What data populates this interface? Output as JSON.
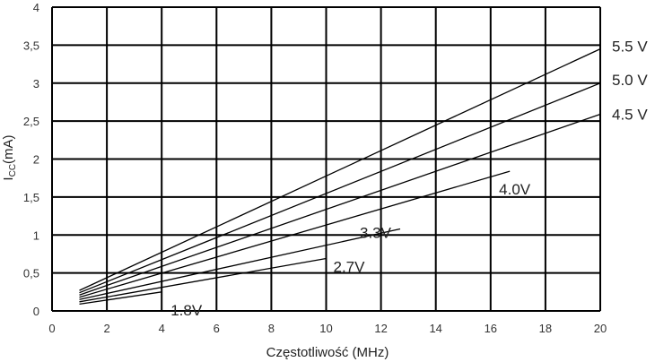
{
  "chart_data": {
    "type": "line",
    "xlabel": "Częstotliwość (MHz)",
    "ylabel_main": "I",
    "ylabel_sub": "CC",
    "ylabel_rest": "(mA)",
    "x_ticks": [
      "0",
      "2",
      "4",
      "6",
      "8",
      "10",
      "12",
      "14",
      "16",
      "18",
      "20"
    ],
    "y_ticks": [
      "0",
      "0,5",
      "1",
      "1,5",
      "2",
      "2,5",
      "3",
      "3,5",
      "4"
    ],
    "xlim": [
      0,
      20
    ],
    "ylim": [
      0,
      4
    ],
    "grid": true,
    "series": [
      {
        "name": "1.8V",
        "x": [
          1,
          4
        ],
        "y": [
          0.09,
          0.25
        ]
      },
      {
        "name": "2.7V",
        "x": [
          1,
          10
        ],
        "y": [
          0.12,
          0.69
        ]
      },
      {
        "name": "3.3V",
        "x": [
          1,
          12.7
        ],
        "y": [
          0.15,
          1.08
        ]
      },
      {
        "name": "4.0V",
        "x": [
          1,
          16.7
        ],
        "y": [
          0.18,
          1.84
        ]
      },
      {
        "name": "4.5 V",
        "x": [
          1,
          20
        ],
        "y": [
          0.21,
          2.59
        ]
      },
      {
        "name": "5.0 V",
        "x": [
          1,
          20
        ],
        "y": [
          0.24,
          3.0
        ]
      },
      {
        "name": "5.5 V",
        "x": [
          1,
          20
        ],
        "y": [
          0.27,
          3.45
        ]
      }
    ]
  }
}
